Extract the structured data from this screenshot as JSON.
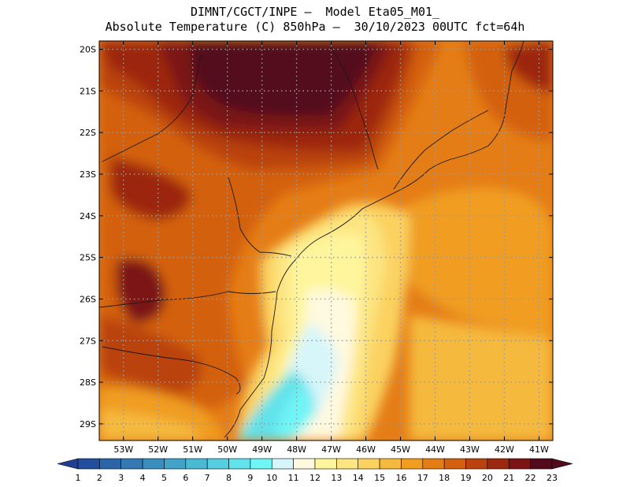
{
  "header": {
    "line1": "DIMNT/CGCT/INPE –  Model Eta05_M01_",
    "line2": "Absolute Temperature (C) 850hPa –  30/10/2023 00UTC fct=64h"
  },
  "map": {
    "lat_labels": [
      "20S",
      "21S",
      "22S",
      "23S",
      "24S",
      "25S",
      "26S",
      "27S",
      "28S",
      "29S"
    ],
    "lon_labels": [
      "53W",
      "52W",
      "51W",
      "50W",
      "49W",
      "48W",
      "47W",
      "46W",
      "45W",
      "44W",
      "43W",
      "42W",
      "41W"
    ],
    "lon_range": [
      -53.7,
      -40.6
    ],
    "lat_range": [
      -19.8,
      -29.4
    ],
    "grid_lines": true
  },
  "colorbar": {
    "labels": [
      "1",
      "2",
      "3",
      "4",
      "5",
      "6",
      "7",
      "8",
      "9",
      "10",
      "11",
      "12",
      "13",
      "14",
      "15",
      "16",
      "17",
      "18",
      "19",
      "20",
      "21",
      "22",
      "23"
    ],
    "colors": [
      "#1f3f93",
      "#224f9d",
      "#2c64a8",
      "#3479b3",
      "#3a8ebe",
      "#42a3c9",
      "#4bb8d4",
      "#56cde0",
      "#62e2ea",
      "#6ff5f6",
      "#d7f6f9",
      "#fff9df",
      "#fff59c",
      "#fde582",
      "#fbd260",
      "#f5b93d",
      "#f09d22",
      "#e57d16",
      "#d3600f",
      "#b9420e",
      "#9c2810",
      "#7c1416",
      "#520b1b"
    ]
  }
}
